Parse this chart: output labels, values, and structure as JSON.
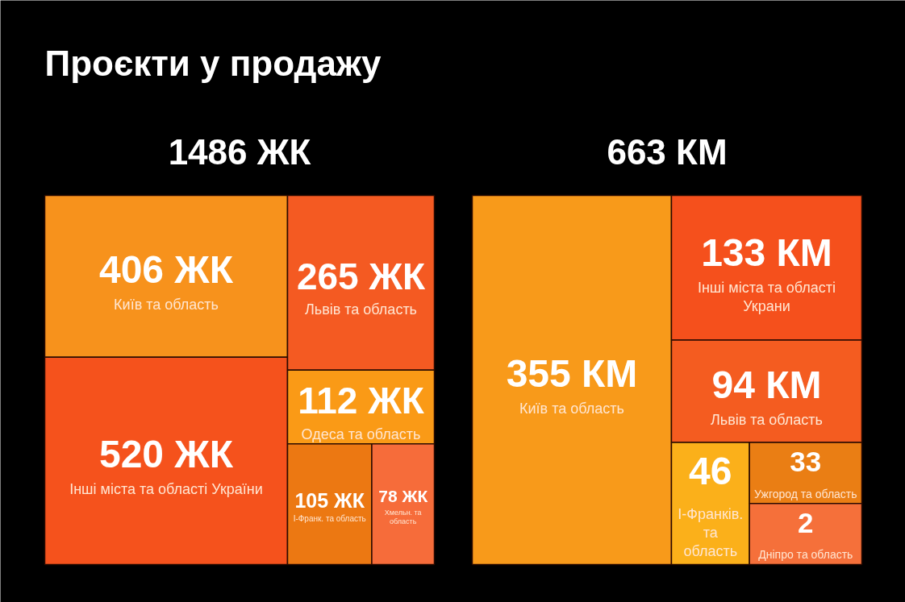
{
  "chart_data": [
    {
      "type": "other",
      "title": "1486 ЖК",
      "annotations": [
        "Проєкти у продажу"
      ],
      "categories": [
        "Київ та область",
        "Інші міста та області України",
        "Львів та область",
        "Одеса та область",
        "І-Франк. та область",
        "Хмельн. та область"
      ],
      "values": [
        406,
        520,
        265,
        112,
        105,
        78
      ],
      "value_labels": [
        "406 ЖК",
        "520 ЖК",
        "265 ЖК",
        "112 ЖК",
        "105 ЖК",
        "78 ЖК"
      ],
      "colors": [
        "#f7921c",
        "#f5521c",
        "#f45a22",
        "#fa9a16",
        "#ec7812",
        "#f66c3a"
      ]
    },
    {
      "type": "other",
      "title": "663 КМ",
      "categories": [
        "Київ та область",
        "Інші міста та області Украни",
        "Львів та область",
        "І-Франків. та область",
        "Ужгород та область",
        "Дніпро та область"
      ],
      "values": [
        355,
        133,
        94,
        46,
        33,
        2
      ],
      "value_labels": [
        "355 КМ",
        "133 КМ",
        "94 КМ",
        "46",
        "33",
        "2"
      ],
      "colors": [
        "#f89a1a",
        "#f5501c",
        "#f45c20",
        "#fbb01a",
        "#ea7e14",
        "#f5703a"
      ]
    }
  ]
}
